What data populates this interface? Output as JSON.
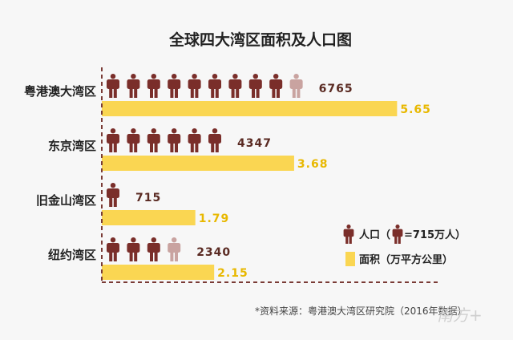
{
  "chart_data": {
    "type": "bar",
    "title": "全球四大湾区面积及人口图",
    "categories": [
      "粤港澳大湾区",
      "东京湾区",
      "旧金山湾区",
      "纽约湾区"
    ],
    "series": [
      {
        "name": "人口",
        "unit": "万人",
        "values": [
          6765,
          4347,
          715,
          2340
        ]
      },
      {
        "name": "面积",
        "unit": "万平方公里",
        "values": [
          5.65,
          3.68,
          1.79,
          2.15
        ]
      }
    ],
    "person_icon_value": 715,
    "area_xlim": [
      0,
      7.5
    ],
    "legend": {
      "population_prefix": "人口（",
      "population_suffix": "=715万人）",
      "area": "面积（万平方公里）",
      "placement": "bottom-right"
    },
    "colors": {
      "person": "#7a2e2a",
      "person_partial": "#c9a3a0",
      "bar": "#fad652",
      "axis": "#7a3b36",
      "pop_label": "#5a2a22",
      "area_label": "#e8b800"
    }
  },
  "source": "*资料来源：粤港澳大湾区研究院（2016年数据）",
  "watermark": "南方+"
}
